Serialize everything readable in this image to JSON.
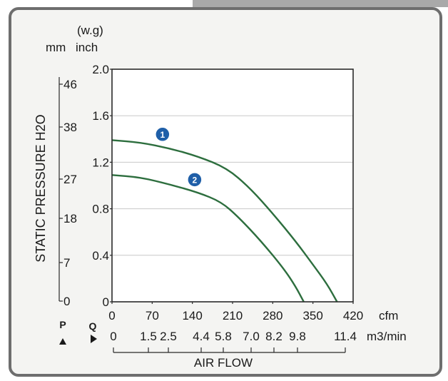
{
  "chart_data": {
    "type": "line",
    "x": [
      0,
      70,
      140,
      210,
      280,
      350,
      420
    ],
    "x_unit": "cfm",
    "x2_ticks": [
      "0",
      "1.5",
      "2.5",
      "4.4",
      "5.8",
      "7.0",
      "8.2",
      "9.8",
      "11.4"
    ],
    "x2_unit": "m3/min",
    "xlabel": "AIR FLOW",
    "xlim": [
      0,
      420
    ],
    "y_ticks": [
      "0",
      "0.4",
      "0.8",
      "1.2",
      "1.6",
      "2.0"
    ],
    "y2_ticks": [
      "0",
      "7",
      "18",
      "27",
      "38",
      "46"
    ],
    "ylabel": "STATIC PRESSURE H2O",
    "ylim": [
      0,
      2.0
    ],
    "unit_top": "(w.g)",
    "unit_mm": "mm",
    "unit_inch": "inch",
    "p_label": "P",
    "q_label": "Q",
    "grid": true,
    "series": [
      {
        "name": "1",
        "color": "#2d6e3e",
        "points": [
          [
            0,
            1.39
          ],
          [
            50,
            1.37
          ],
          [
            100,
            1.32
          ],
          [
            150,
            1.25
          ],
          [
            200,
            1.15
          ],
          [
            240,
            0.98
          ],
          [
            280,
            0.76
          ],
          [
            320,
            0.52
          ],
          [
            350,
            0.32
          ],
          [
            375,
            0.15
          ],
          [
            392,
            0.0
          ]
        ]
      },
      {
        "name": "2",
        "color": "#2d6e3e",
        "points": [
          [
            0,
            1.09
          ],
          [
            50,
            1.07
          ],
          [
            100,
            1.01
          ],
          [
            150,
            0.94
          ],
          [
            190,
            0.86
          ],
          [
            220,
            0.73
          ],
          [
            260,
            0.52
          ],
          [
            300,
            0.28
          ],
          [
            320,
            0.13
          ],
          [
            334,
            0.0
          ]
        ]
      }
    ],
    "markers": [
      {
        "label": "1",
        "x": 88,
        "y": 1.44
      },
      {
        "label": "2",
        "x": 144,
        "y": 1.05
      }
    ]
  }
}
